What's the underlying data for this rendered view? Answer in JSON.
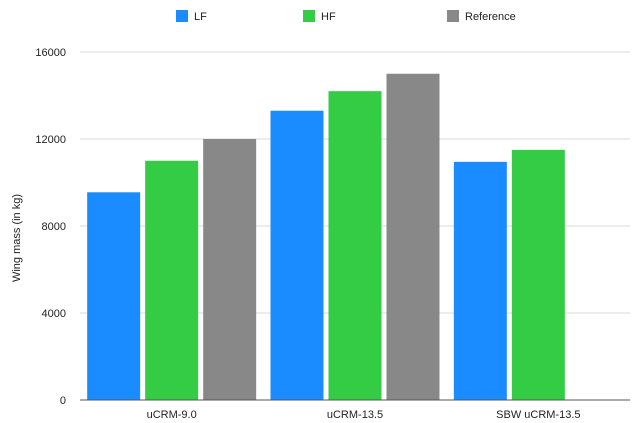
{
  "chart_data": {
    "type": "bar",
    "title": "",
    "xlabel": "",
    "ylabel": "Wing mass (in kg)",
    "categories": [
      "uCRM-9.0",
      "uCRM-13.5",
      "SBW uCRM-13.5"
    ],
    "series": [
      {
        "name": "LF",
        "color": "#1a8cff",
        "values": [
          9550,
          13300,
          10950
        ]
      },
      {
        "name": "HF",
        "color": "#33cc44",
        "values": [
          11000,
          14200,
          11500
        ]
      },
      {
        "name": "Reference",
        "color": "#888888",
        "values": [
          12000,
          15000,
          null
        ]
      }
    ],
    "ylim": [
      0,
      16000
    ],
    "yticks": [
      0,
      4000,
      8000,
      12000,
      16000
    ],
    "grid": true,
    "legend_position": "top-center"
  }
}
